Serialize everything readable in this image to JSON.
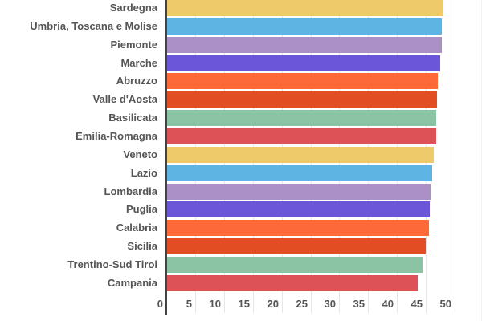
{
  "chart_data": {
    "type": "bar",
    "orientation": "horizontal",
    "title": "",
    "xlabel": "",
    "ylabel": "",
    "xlim": [
      0,
      50
    ],
    "grid": true,
    "legend": "none",
    "x_ticks": [
      "0",
      "5",
      "10",
      "15",
      "20",
      "25",
      "30",
      "35",
      "40",
      "45",
      "50"
    ],
    "categories": [
      "Sardegna",
      "Umbria, Toscana e Molise",
      "Piemonte",
      "Marche",
      "Abruzzo",
      "Valle d'Aosta",
      "Basilicata",
      "Emilia-Romagna",
      "Veneto",
      "Lazio",
      "Lombardia",
      "Puglia",
      "Calabria",
      "Sicilia",
      "Trentino-Sud Tirol",
      "Campania"
    ],
    "values": [
      47.9,
      47.7,
      47.6,
      47.3,
      46.9,
      46.8,
      46.7,
      46.7,
      46.3,
      45.9,
      45.7,
      45.6,
      45.4,
      44.8,
      44.3,
      43.5
    ],
    "colors": [
      "#EECA6A",
      "#5EB5E3",
      "#AA90C5",
      "#6B55D8",
      "#FE6A37",
      "#E24D23",
      "#8BC3A5",
      "#DC5257",
      "#EECA6A",
      "#5EB5E3",
      "#AA90C5",
      "#6B55D8",
      "#FE6A37",
      "#E24D23",
      "#8BC3A5",
      "#DC5257"
    ]
  }
}
